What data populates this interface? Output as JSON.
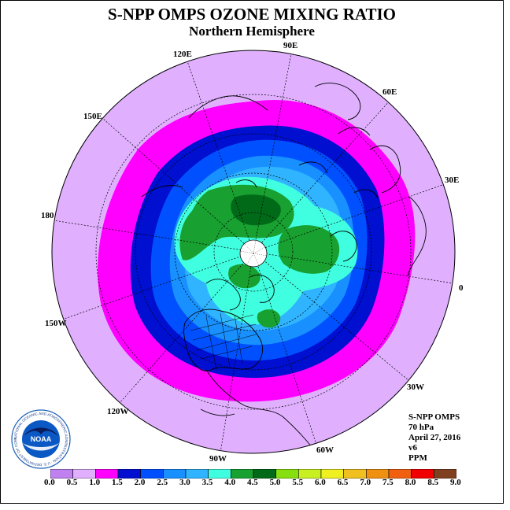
{
  "header": {
    "title": "S-NPP OMPS OZONE MIXING RATIO",
    "subtitle": "Northern Hemisphere"
  },
  "map": {
    "projection": "polar-stereographic",
    "longitude_labels": [
      "90E",
      "60E",
      "30E",
      "0",
      "30W",
      "60W",
      "90W",
      "120W",
      "150W",
      "180",
      "150E",
      "120E"
    ],
    "background_color": "#ffffff"
  },
  "info": {
    "instrument": "S-NPP OMPS",
    "pressure": "70 hPa",
    "date": "April 27, 2016",
    "version": "v6",
    "units": "PPM"
  },
  "colorbar": {
    "tick_labels": [
      "0.0",
      "0.5",
      "1.0",
      "1.5",
      "2.0",
      "2.5",
      "3.0",
      "3.5",
      "4.0",
      "4.5",
      "5.0",
      "5.5",
      "6.0",
      "6.5",
      "7.0",
      "7.5",
      "8.0",
      "8.5",
      "9.0"
    ],
    "colors": [
      "#c080f0",
      "#e0b0ff",
      "#ff00ff",
      "#000fd0",
      "#0050ff",
      "#1890ff",
      "#30b4ff",
      "#40ffe0",
      "#18a030",
      "#006a18",
      "#86e010",
      "#c8f020",
      "#f0f020",
      "#f0c020",
      "#f09010",
      "#f06010",
      "#f00000",
      "#804020"
    ]
  },
  "logo": {
    "text": "NOAA",
    "ring_text": "NATIONAL OCEANIC AND ATMOSPHERIC ADMINISTRATION · U.S. DEPARTMENT OF COMMERCE"
  }
}
